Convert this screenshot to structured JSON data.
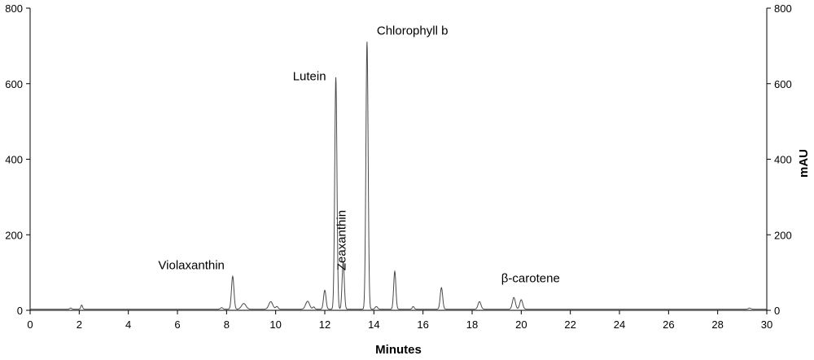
{
  "chart_data": {
    "type": "line",
    "title": "",
    "xlabel": "Minutes",
    "ylabel": "mAU",
    "xlim": [
      0,
      30
    ],
    "ylim": [
      0,
      800
    ],
    "x_ticks": [
      "0",
      "2",
      "4",
      "6",
      "8",
      "10",
      "12",
      "14",
      "16",
      "18",
      "20",
      "22",
      "24",
      "26",
      "28",
      "30"
    ],
    "y_ticks": [
      "0",
      "200",
      "400",
      "600",
      "800"
    ],
    "grid": false,
    "legend": "none",
    "baseline": 3,
    "series_color": "#4a4a4a",
    "peaks": [
      {
        "t": 1.65,
        "h": 3,
        "w": 0.04
      },
      {
        "t": 2.1,
        "h": 11,
        "w": 0.035
      },
      {
        "t": 7.8,
        "h": 4,
        "w": 0.05
      },
      {
        "t": 8.25,
        "h": 87,
        "w": 0.05
      },
      {
        "t": 8.7,
        "h": 15,
        "w": 0.09
      },
      {
        "t": 9.8,
        "h": 20,
        "w": 0.08
      },
      {
        "t": 10.05,
        "h": 7,
        "w": 0.05
      },
      {
        "t": 11.3,
        "h": 21,
        "w": 0.08
      },
      {
        "t": 11.55,
        "h": 6,
        "w": 0.04
      },
      {
        "t": 12.0,
        "h": 50,
        "w": 0.05
      },
      {
        "t": 12.45,
        "h": 614,
        "w": 0.045
      },
      {
        "t": 12.75,
        "h": 125,
        "w": 0.045
      },
      {
        "t": 13.72,
        "h": 708,
        "w": 0.045
      },
      {
        "t": 14.1,
        "h": 7,
        "w": 0.05
      },
      {
        "t": 14.85,
        "h": 100,
        "w": 0.045
      },
      {
        "t": 15.6,
        "h": 7,
        "w": 0.04
      },
      {
        "t": 16.75,
        "h": 57,
        "w": 0.05
      },
      {
        "t": 18.3,
        "h": 20,
        "w": 0.06
      },
      {
        "t": 19.7,
        "h": 31,
        "w": 0.06
      },
      {
        "t": 20.0,
        "h": 25,
        "w": 0.06
      },
      {
        "t": 29.3,
        "h": 3,
        "w": 0.05
      }
    ],
    "annotations": [
      {
        "text": "Violaxanthin",
        "x": 8.25,
        "y": 87
      },
      {
        "text": "Lutein",
        "x": 12.45,
        "y": 614
      },
      {
        "text": "Zeaxanthin",
        "x": 12.75,
        "y": 125
      },
      {
        "text": "Chlorophyll b",
        "x": 13.72,
        "y": 708
      },
      {
        "text": "β-carotene",
        "x": 19.85,
        "y": 31
      }
    ]
  }
}
